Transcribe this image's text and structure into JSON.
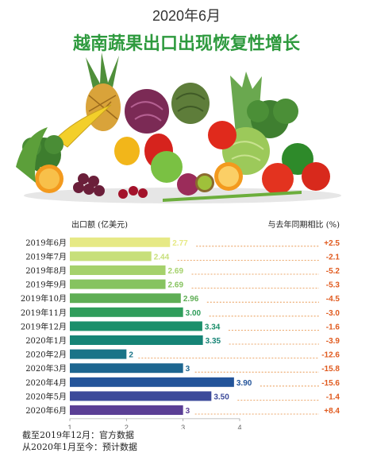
{
  "header": {
    "title": "2020年6月",
    "headline": "越南蔬果出口出现恢复性增长",
    "colors": {
      "title": "#333333",
      "headline": "#2e9a3e"
    }
  },
  "chart_data": {
    "type": "bar",
    "title": "",
    "xlabel": "",
    "ylabel": "",
    "left_caption": "出口额 (亿美元)",
    "right_caption": "与去年同期相比 (%)",
    "categories": [
      "2019年6月",
      "2019年7月",
      "2019年8月",
      "2019年9月",
      "2019年10月",
      "2019年11月",
      "2019年12月",
      "2020年1月",
      "2020年2月",
      "2020年3月",
      "2020年4月",
      "2020年5月",
      "2020年6月"
    ],
    "values": [
      2.77,
      2.44,
      2.69,
      2.69,
      2.96,
      3.0,
      3.34,
      3.35,
      2,
      3,
      3.9,
      3.5,
      3
    ],
    "value_labels": [
      "2.77",
      "2.44",
      "2.69",
      "2.69",
      "2.96",
      "3.00",
      "3.34",
      "3.35",
      "2",
      "3",
      "3.90",
      "3.50",
      "3"
    ],
    "yoy_change": [
      "+2.5",
      "-2.1",
      "-5.2",
      "-5.3",
      "-4.5",
      "-3.0",
      "-1.6",
      "-3.9",
      "-12.6",
      "-15.8",
      "-15.6",
      "-1.4",
      "+8.4"
    ],
    "bar_colors": [
      "#e6e985",
      "#c7df7a",
      "#a5d16c",
      "#86c35f",
      "#5fae55",
      "#2f9d5b",
      "#1c8f6b",
      "#168476",
      "#1a7488",
      "#1d6690",
      "#23549a",
      "#3c4a9a",
      "#5b3f95"
    ],
    "xlim": [
      1,
      4
    ],
    "xticks": [
      "1",
      "2",
      "3",
      "4"
    ],
    "grid": false,
    "colors": {
      "yoy": "#e05a1e",
      "leader": "#e58a3a"
    }
  },
  "notes": [
    "截至2019年12月：官方数据",
    "从2020年1月至今：预计数据"
  ]
}
